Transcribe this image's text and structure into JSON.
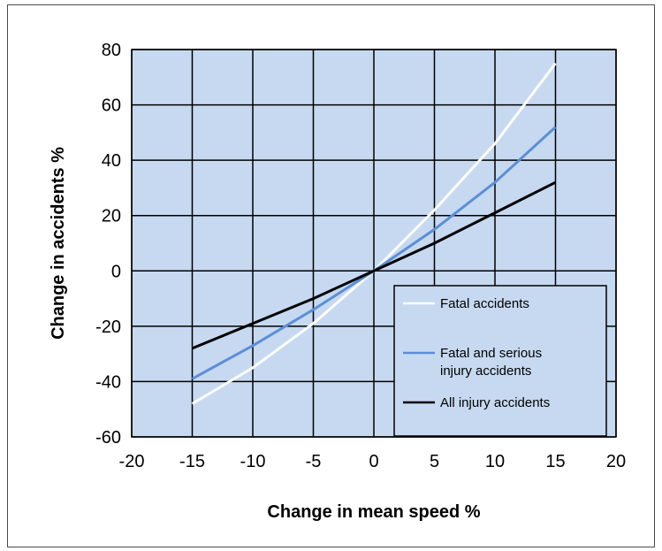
{
  "chart_data": {
    "type": "line",
    "title": "",
    "xlabel": "Change in mean speed %",
    "ylabel": "Change in accidents %",
    "xlim": [
      -20,
      20
    ],
    "ylim": [
      -60,
      80
    ],
    "x_ticks": [
      -20,
      -15,
      -10,
      -5,
      0,
      5,
      10,
      15,
      20
    ],
    "y_ticks": [
      -60,
      -40,
      -20,
      0,
      20,
      40,
      60,
      80
    ],
    "grid": true,
    "legend_position": "lower-right",
    "plot_background": "#c6d9f0",
    "series": [
      {
        "name": "Fatal accidents",
        "color": "#ffffff",
        "x": [
          -15,
          -10,
          -5,
          0,
          5,
          10,
          15
        ],
        "y": [
          -48,
          -35,
          -19,
          0,
          22,
          46,
          75
        ]
      },
      {
        "name": "Fatal and serious injury accidents",
        "legend_lines": [
          "Fatal and serious",
          "injury accidents"
        ],
        "color": "#5b8fd6",
        "x": [
          -15,
          -10,
          -5,
          0,
          5,
          10,
          15
        ],
        "y": [
          -39,
          -27,
          -14,
          0,
          15,
          32,
          52
        ]
      },
      {
        "name": "All injury accidents",
        "color": "#000000",
        "x": [
          -15,
          -10,
          -5,
          0,
          5,
          10,
          15
        ],
        "y": [
          -28,
          -19,
          -10,
          0,
          10,
          21,
          32
        ]
      }
    ]
  }
}
